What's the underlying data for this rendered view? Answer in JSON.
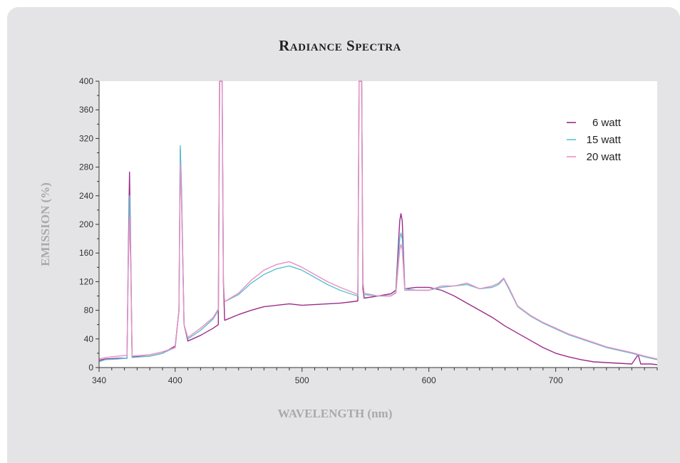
{
  "chart_data": {
    "type": "line",
    "title": "Radiance Spectra",
    "xlabel": "WAVELENGTH (nm)",
    "ylabel": "EMISSION (%)",
    "xlim": [
      340,
      780
    ],
    "ylim": [
      0,
      400
    ],
    "x_ticks": [
      340,
      400,
      500,
      600,
      700
    ],
    "y_ticks": [
      0,
      40,
      80,
      120,
      160,
      200,
      240,
      280,
      320,
      360,
      400
    ],
    "grid": false,
    "legend_position": "top-right",
    "series": [
      {
        "name": "6 watt",
        "color": "#9b2c8a",
        "points": [
          [
            340,
            10
          ],
          [
            345,
            12
          ],
          [
            355,
            13
          ],
          [
            362,
            13
          ],
          [
            363,
            150
          ],
          [
            364,
            273
          ],
          [
            365,
            150
          ],
          [
            366,
            15
          ],
          [
            380,
            16
          ],
          [
            390,
            20
          ],
          [
            400,
            30
          ],
          [
            403,
            80
          ],
          [
            404,
            305
          ],
          [
            405,
            240
          ],
          [
            407,
            60
          ],
          [
            410,
            37
          ],
          [
            420,
            45
          ],
          [
            430,
            55
          ],
          [
            434,
            60
          ],
          [
            435,
            400
          ],
          [
            437,
            400
          ],
          [
            438,
            120
          ],
          [
            439,
            66
          ],
          [
            450,
            74
          ],
          [
            460,
            80
          ],
          [
            470,
            85
          ],
          [
            480,
            87
          ],
          [
            490,
            89
          ],
          [
            500,
            87
          ],
          [
            510,
            88
          ],
          [
            520,
            89
          ],
          [
            530,
            90
          ],
          [
            540,
            92
          ],
          [
            544,
            93
          ],
          [
            545,
            400
          ],
          [
            547,
            400
          ],
          [
            548,
            110
          ],
          [
            549,
            97
          ],
          [
            560,
            100
          ],
          [
            570,
            103
          ],
          [
            574,
            108
          ],
          [
            577,
            205
          ],
          [
            578,
            215
          ],
          [
            579,
            205
          ],
          [
            581,
            110
          ],
          [
            590,
            112
          ],
          [
            600,
            112
          ],
          [
            610,
            108
          ],
          [
            620,
            100
          ],
          [
            630,
            90
          ],
          [
            640,
            80
          ],
          [
            650,
            70
          ],
          [
            660,
            58
          ],
          [
            670,
            48
          ],
          [
            680,
            38
          ],
          [
            690,
            28
          ],
          [
            700,
            20
          ],
          [
            710,
            15
          ],
          [
            720,
            11
          ],
          [
            730,
            8
          ],
          [
            740,
            7
          ],
          [
            750,
            6
          ],
          [
            760,
            5
          ],
          [
            765,
            18
          ],
          [
            767,
            5
          ],
          [
            775,
            5
          ],
          [
            780,
            4
          ]
        ]
      },
      {
        "name": "15 watt",
        "color": "#5bc1d2",
        "points": [
          [
            340,
            8
          ],
          [
            345,
            11
          ],
          [
            355,
            12
          ],
          [
            362,
            13
          ],
          [
            363,
            140
          ],
          [
            364,
            240
          ],
          [
            365,
            140
          ],
          [
            366,
            14
          ],
          [
            380,
            16
          ],
          [
            390,
            20
          ],
          [
            400,
            28
          ],
          [
            403,
            80
          ],
          [
            404,
            310
          ],
          [
            405,
            250
          ],
          [
            407,
            60
          ],
          [
            410,
            40
          ],
          [
            420,
            52
          ],
          [
            430,
            68
          ],
          [
            434,
            80
          ],
          [
            435,
            400
          ],
          [
            437,
            400
          ],
          [
            438,
            120
          ],
          [
            439,
            92
          ],
          [
            450,
            102
          ],
          [
            460,
            118
          ],
          [
            470,
            130
          ],
          [
            480,
            138
          ],
          [
            490,
            142
          ],
          [
            500,
            136
          ],
          [
            510,
            126
          ],
          [
            520,
            116
          ],
          [
            530,
            108
          ],
          [
            540,
            102
          ],
          [
            544,
            100
          ],
          [
            545,
            400
          ],
          [
            547,
            400
          ],
          [
            548,
            120
          ],
          [
            549,
            102
          ],
          [
            560,
            100
          ],
          [
            570,
            100
          ],
          [
            574,
            105
          ],
          [
            577,
            180
          ],
          [
            578,
            188
          ],
          [
            579,
            180
          ],
          [
            581,
            110
          ],
          [
            590,
            108
          ],
          [
            600,
            108
          ],
          [
            610,
            112
          ],
          [
            620,
            114
          ],
          [
            630,
            116
          ],
          [
            640,
            110
          ],
          [
            650,
            112
          ],
          [
            655,
            116
          ],
          [
            659,
            124
          ],
          [
            663,
            110
          ],
          [
            670,
            85
          ],
          [
            680,
            72
          ],
          [
            690,
            62
          ],
          [
            700,
            54
          ],
          [
            710,
            46
          ],
          [
            720,
            40
          ],
          [
            730,
            34
          ],
          [
            740,
            28
          ],
          [
            750,
            24
          ],
          [
            760,
            20
          ],
          [
            770,
            15
          ],
          [
            780,
            11
          ]
        ]
      },
      {
        "name": "20 watt",
        "color": "#e88fc2",
        "points": [
          [
            340,
            12
          ],
          [
            345,
            14
          ],
          [
            355,
            16
          ],
          [
            362,
            17
          ],
          [
            363,
            140
          ],
          [
            364,
            210
          ],
          [
            365,
            140
          ],
          [
            366,
            16
          ],
          [
            380,
            18
          ],
          [
            390,
            22
          ],
          [
            400,
            28
          ],
          [
            403,
            80
          ],
          [
            404,
            285
          ],
          [
            405,
            230
          ],
          [
            407,
            60
          ],
          [
            410,
            42
          ],
          [
            420,
            55
          ],
          [
            430,
            70
          ],
          [
            434,
            82
          ],
          [
            435,
            400
          ],
          [
            437,
            400
          ],
          [
            438,
            120
          ],
          [
            439,
            92
          ],
          [
            450,
            104
          ],
          [
            460,
            122
          ],
          [
            470,
            136
          ],
          [
            480,
            144
          ],
          [
            490,
            148
          ],
          [
            500,
            140
          ],
          [
            510,
            130
          ],
          [
            520,
            120
          ],
          [
            530,
            112
          ],
          [
            540,
            105
          ],
          [
            544,
            102
          ],
          [
            545,
            400
          ],
          [
            547,
            400
          ],
          [
            548,
            120
          ],
          [
            549,
            104
          ],
          [
            560,
            100
          ],
          [
            570,
            100
          ],
          [
            574,
            104
          ],
          [
            577,
            165
          ],
          [
            578,
            172
          ],
          [
            579,
            165
          ],
          [
            581,
            108
          ],
          [
            590,
            108
          ],
          [
            600,
            108
          ],
          [
            610,
            114
          ],
          [
            620,
            114
          ],
          [
            630,
            118
          ],
          [
            640,
            110
          ],
          [
            650,
            114
          ],
          [
            655,
            118
          ],
          [
            659,
            125
          ],
          [
            663,
            112
          ],
          [
            670,
            86
          ],
          [
            680,
            73
          ],
          [
            690,
            63
          ],
          [
            700,
            55
          ],
          [
            710,
            47
          ],
          [
            720,
            41
          ],
          [
            730,
            35
          ],
          [
            740,
            29
          ],
          [
            750,
            25
          ],
          [
            760,
            21
          ],
          [
            770,
            16
          ],
          [
            780,
            12
          ]
        ]
      }
    ]
  }
}
